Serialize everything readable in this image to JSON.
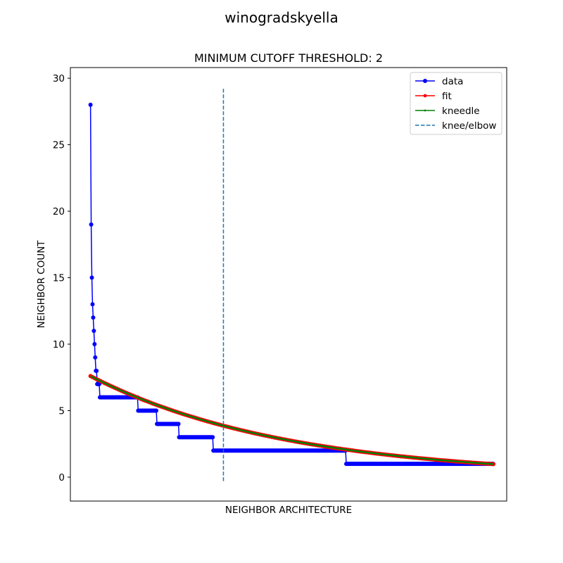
{
  "suptitle": "winogradskyella",
  "chart_data": {
    "type": "line",
    "title": "MINIMUM CUTOFF THRESHOLD: 2",
    "xlabel": "NEIGHBOR ARCHITECTURE",
    "ylabel": "NEIGHBOR COUNT",
    "xlim": [
      -30,
      620
    ],
    "ylim": [
      -1.8,
      30.8
    ],
    "yticks": [
      0,
      5,
      10,
      15,
      20,
      25,
      30
    ],
    "xticks_visible": false,
    "grid": false,
    "legend_position": "top-right",
    "series": [
      {
        "name": "data",
        "color": "#0000ff",
        "marker": "circle",
        "steps": [
          {
            "x_start": 0,
            "x_end": 0,
            "y": 28
          },
          {
            "x_start": 1,
            "x_end": 1,
            "y": 19
          },
          {
            "x_start": 2,
            "x_end": 2,
            "y": 15
          },
          {
            "x_start": 3,
            "x_end": 3,
            "y": 13
          },
          {
            "x_start": 4,
            "x_end": 4,
            "y": 12
          },
          {
            "x_start": 5,
            "x_end": 5,
            "y": 11
          },
          {
            "x_start": 6,
            "x_end": 6,
            "y": 10
          },
          {
            "x_start": 7,
            "x_end": 7,
            "y": 9
          },
          {
            "x_start": 8,
            "x_end": 9,
            "y": 8
          },
          {
            "x_start": 10,
            "x_end": 13,
            "y": 7
          },
          {
            "x_start": 14,
            "x_end": 70,
            "y": 6
          },
          {
            "x_start": 71,
            "x_end": 98,
            "y": 5
          },
          {
            "x_start": 99,
            "x_end": 131,
            "y": 4
          },
          {
            "x_start": 132,
            "x_end": 182,
            "y": 3
          },
          {
            "x_start": 183,
            "x_end": 380,
            "y": 2
          },
          {
            "x_start": 381,
            "x_end": 600,
            "y": 1
          }
        ]
      },
      {
        "name": "fit",
        "color": "#ff0000",
        "marker": "circle-small",
        "function": "exponential_decay",
        "x_range": [
          0,
          600
        ],
        "y_start": 7.6,
        "y_end": 0.98
      },
      {
        "name": "kneedle",
        "color": "#008000",
        "marker": "point",
        "function": "exponential_decay",
        "x_range": [
          0,
          600
        ],
        "y_start": 7.6,
        "y_end": 0.98
      }
    ],
    "knee": {
      "name": "knee/elbow",
      "color": "#1f77b4",
      "x": 198,
      "y_range": [
        -0.3,
        29.3
      ],
      "style": "dashed"
    }
  }
}
